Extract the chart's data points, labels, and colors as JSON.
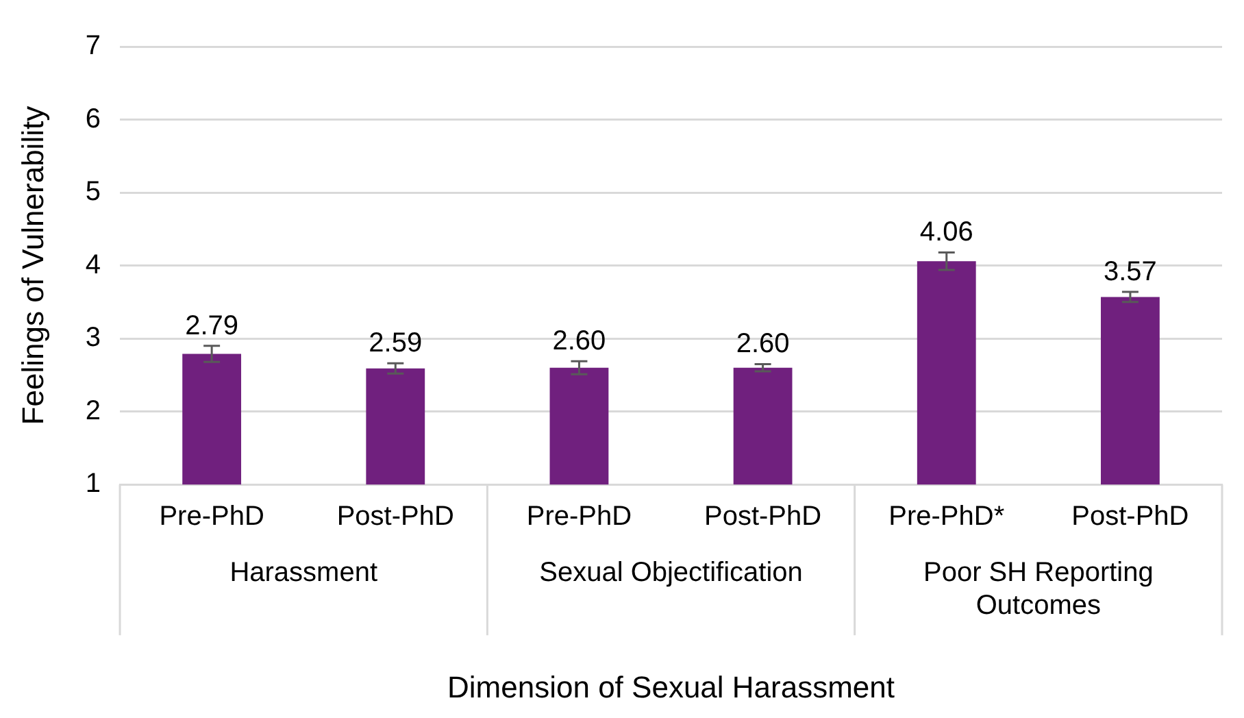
{
  "chart_data": {
    "type": "bar",
    "xlabel": "Dimension of Sexual Harassment",
    "ylabel": "Feelings of Vulnerability",
    "categories": [
      "Pre-PhD",
      "Post-PhD",
      "Pre-PhD",
      "Post-PhD",
      "Pre-PhD*",
      "Post-PhD"
    ],
    "values": [
      2.79,
      2.59,
      2.6,
      2.6,
      4.06,
      3.57
    ],
    "errors": [
      0.11,
      0.07,
      0.09,
      0.05,
      0.12,
      0.07
    ],
    "color": "#70207e",
    "data_labels": true,
    "value_labels": [
      "2.79",
      "2.59",
      "2.60",
      "2.60",
      "4.06",
      "3.57"
    ],
    "annotations": [
      "Harassment",
      "Sexual Objectification",
      "Poor SH Reporting Outcomes"
    ],
    "ylim": [
      1,
      7
    ],
    "yticks": [
      1,
      2,
      3,
      4,
      5,
      6,
      7
    ],
    "grid": "y",
    "legend": false
  }
}
